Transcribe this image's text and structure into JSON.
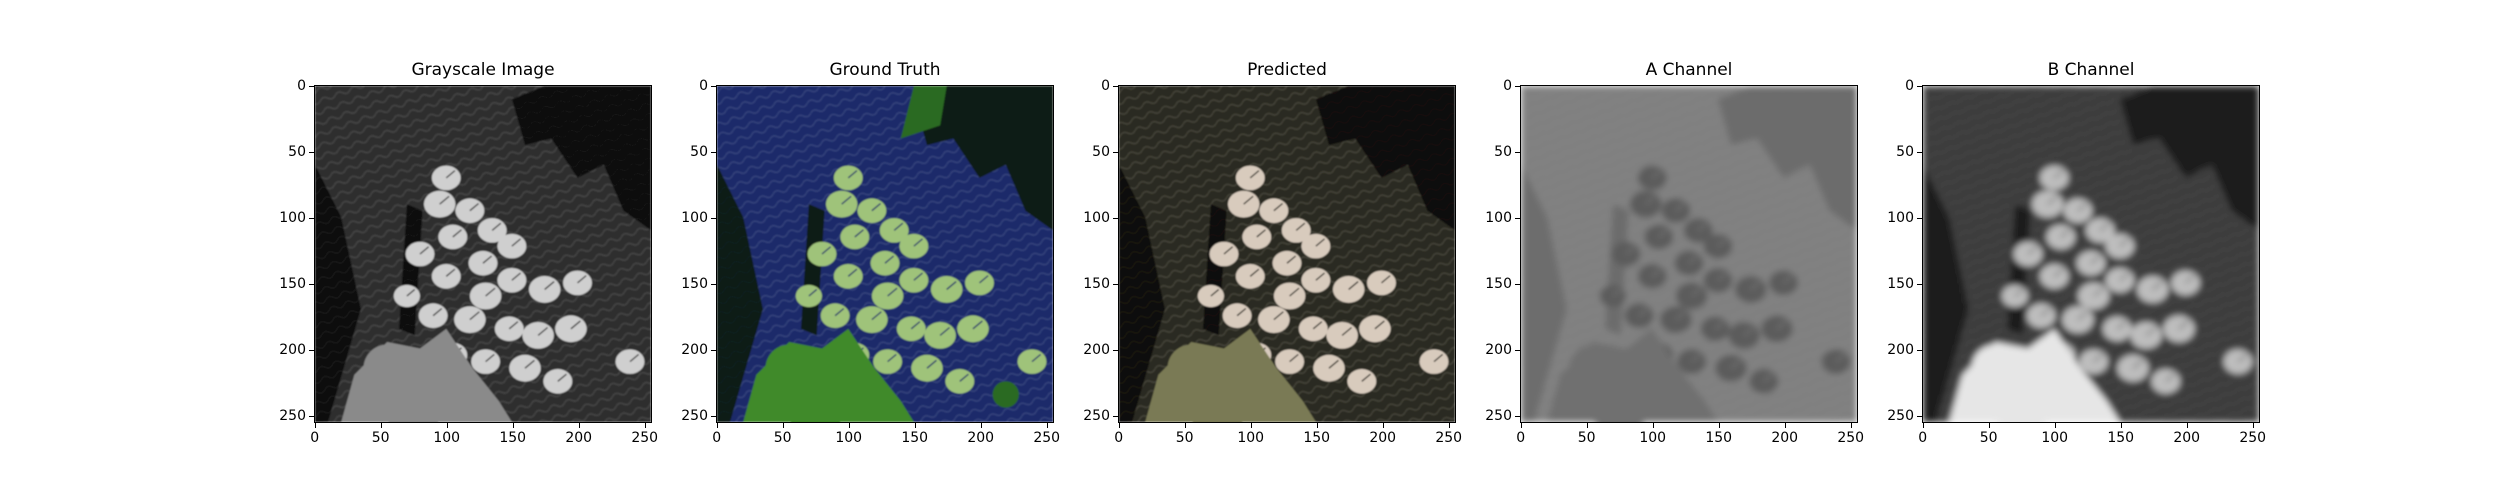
{
  "panels": [
    {
      "title": "Grayscale Image",
      "style": "gray"
    },
    {
      "title": "Ground Truth",
      "style": "truth"
    },
    {
      "title": "Predicted",
      "style": "pred"
    },
    {
      "title": "A Channel",
      "style": "achan"
    },
    {
      "title": "B Channel",
      "style": "bchan"
    }
  ],
  "axes": {
    "x_ticks": [
      "0",
      "50",
      "100",
      "150",
      "200",
      "250"
    ],
    "y_ticks": [
      "0",
      "50",
      "100",
      "150",
      "200",
      "250"
    ],
    "x_tick_values": [
      0,
      50,
      100,
      150,
      200,
      250
    ],
    "y_tick_values": [
      0,
      50,
      100,
      150,
      200,
      250
    ],
    "range": [
      0,
      256
    ]
  },
  "colors": {
    "water_truth": "#1b2a6a",
    "leaf_truth": "#9fc37a",
    "foliage_truth": "#3f8a2a",
    "water_pred": "#2b2a20",
    "leaf_pred": "#d8cbbd",
    "foliage_pred": "#7a7a55"
  }
}
